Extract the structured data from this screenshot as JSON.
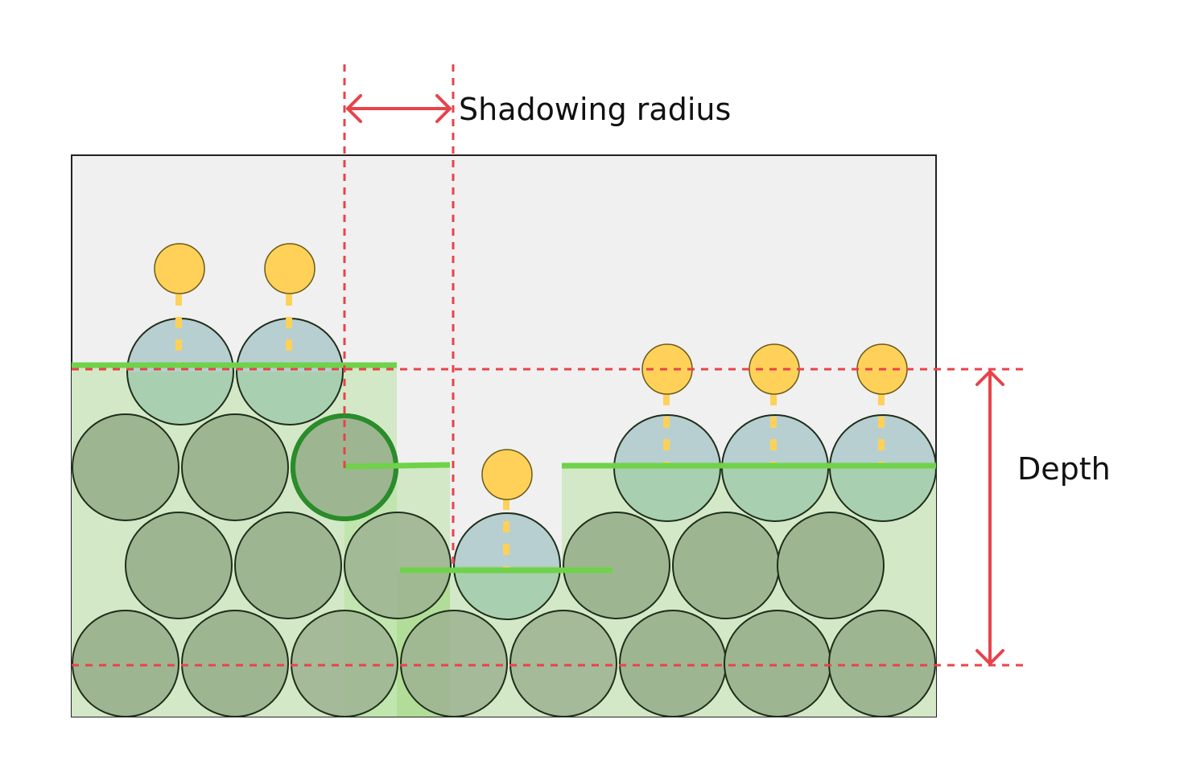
{
  "labels": {
    "shadowing_radius": "Shadowing radius",
    "depth": "Depth"
  },
  "colors": {
    "panel_fill": "#f0f0f0",
    "panel_stroke": "#222222",
    "region_fill": "#d3e8c6",
    "region_highlight": "#7ed957",
    "particle_fill": "#9eb592",
    "particle_stroke": "#1e2e1a",
    "surface_particle_fill": "#b7cfd0",
    "light_fill": "#ffd158",
    "light_stroke": "#6b5a1a",
    "ray_color": "#ffd158",
    "surface_line": "#6fd24a",
    "guide_red": "#e8434a",
    "selected_ring": "#2a8c2a"
  },
  "icons": {
    "light_source": "yellow-circle-icon",
    "particle": "circle-icon",
    "arrow": "double-arrow-icon"
  }
}
